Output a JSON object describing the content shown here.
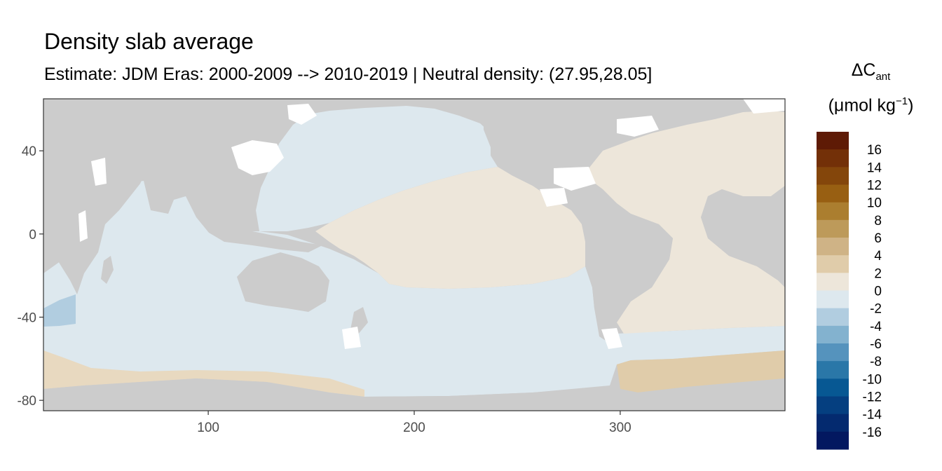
{
  "title": "Density slab average",
  "subtitle": "Estimate: JDM Eras: 2000-2009 --> 2010-2019 | Neutral density: (27.95,28.05]",
  "legend": {
    "title_delta_c": "ΔC",
    "title_sub": "ant",
    "title_unit_open": "(μmol kg",
    "title_unit_sup": "−1",
    "title_unit_close": ")",
    "ticks": [
      "16",
      "14",
      "12",
      "10",
      "8",
      "6",
      "4",
      "2",
      "0",
      "-2",
      "-4",
      "-6",
      "-8",
      "-10",
      "-12",
      "-14",
      "-16"
    ],
    "bins": [
      {
        "lo": 16,
        "hi": 18,
        "color": "#5e1a05"
      },
      {
        "lo": 14,
        "hi": 16,
        "color": "#733008"
      },
      {
        "lo": 12,
        "hi": 14,
        "color": "#84460b"
      },
      {
        "lo": 10,
        "hi": 12,
        "color": "#985f12"
      },
      {
        "lo": 8,
        "hi": 10,
        "color": "#ab7e2f"
      },
      {
        "lo": 6,
        "hi": 8,
        "color": "#bd9a5a"
      },
      {
        "lo": 4,
        "hi": 6,
        "color": "#cfb386"
      },
      {
        "lo": 2,
        "hi": 4,
        "color": "#e0ccaa"
      },
      {
        "lo": 0,
        "hi": 2,
        "color": "#ede6da"
      },
      {
        "lo": -2,
        "hi": 0,
        "color": "#dde8ee"
      },
      {
        "lo": -4,
        "hi": -2,
        "color": "#b1cde0"
      },
      {
        "lo": -6,
        "hi": -4,
        "color": "#83b2cf"
      },
      {
        "lo": -8,
        "hi": -6,
        "color": "#5593bd"
      },
      {
        "lo": -10,
        "hi": -8,
        "color": "#2a77a8"
      },
      {
        "lo": -12,
        "hi": -10,
        "color": "#075893"
      },
      {
        "lo": -14,
        "hi": -12,
        "color": "#053f80"
      },
      {
        "lo": -16,
        "hi": -14,
        "color": "#042a6f"
      },
      {
        "lo": -18,
        "hi": -16,
        "color": "#031860"
      }
    ]
  },
  "map": {
    "x_ticks": [
      100,
      200,
      300
    ],
    "y_ticks": [
      40,
      0,
      -40,
      -80
    ],
    "xlim": [
      20,
      380
    ],
    "ylim": [
      -85,
      65
    ],
    "land_color": "#cccccc",
    "nodata_color": "#ffffff",
    "panel_border": "#333333"
  }
}
